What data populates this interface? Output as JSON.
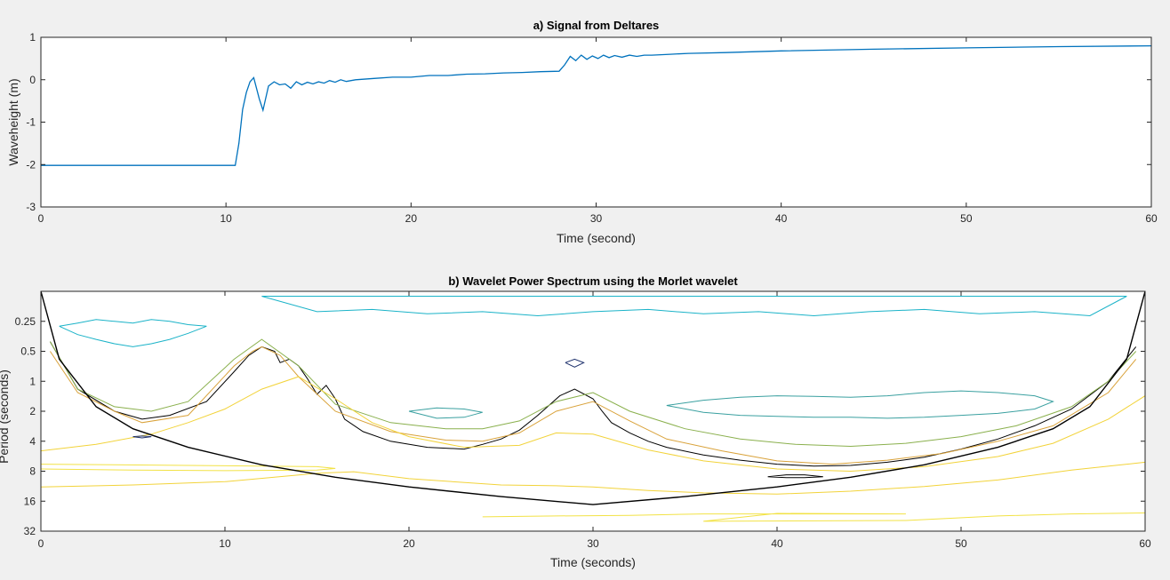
{
  "figure": {
    "background": "#f0f0f0",
    "axes_background": "#ffffff",
    "axes_color": "#262626"
  },
  "chart_data": [
    {
      "type": "line",
      "title": "a) Signal from Deltares",
      "xlabel": "Time (second)",
      "ylabel": "Waveheight (m)",
      "xlim": [
        0,
        60
      ],
      "ylim": [
        -3,
        1
      ],
      "xticks": [
        0,
        10,
        20,
        30,
        40,
        50,
        60
      ],
      "yticks": [
        -3,
        -2,
        -1,
        0,
        1
      ],
      "grid": false,
      "series": [
        {
          "color": "#0072bd",
          "x": [
            0,
            10.5,
            10.7,
            10.9,
            11.1,
            11.3,
            11.5,
            11.8,
            12.0,
            12.3,
            12.6,
            12.9,
            13.2,
            13.5,
            13.8,
            14.1,
            14.4,
            14.7,
            15.0,
            15.3,
            15.6,
            15.9,
            16.2,
            16.5,
            17,
            18,
            19,
            20,
            21,
            22,
            23,
            24,
            25,
            26,
            27,
            28.0,
            28.3,
            28.6,
            28.9,
            29.2,
            29.5,
            29.8,
            30.1,
            30.4,
            30.7,
            31.0,
            31.4,
            31.8,
            32.2,
            32.6,
            33,
            34,
            35,
            37,
            40,
            45,
            50,
            55,
            60
          ],
          "y": [
            -2.02,
            -2.02,
            -1.5,
            -0.7,
            -0.3,
            -0.05,
            0.05,
            -0.45,
            -0.72,
            -0.15,
            -0.05,
            -0.12,
            -0.1,
            -0.2,
            -0.05,
            -0.12,
            -0.06,
            -0.1,
            -0.05,
            -0.08,
            -0.02,
            -0.06,
            0.0,
            -0.04,
            0.0,
            0.03,
            0.06,
            0.06,
            0.1,
            0.1,
            0.13,
            0.14,
            0.16,
            0.17,
            0.19,
            0.2,
            0.35,
            0.55,
            0.45,
            0.58,
            0.48,
            0.56,
            0.5,
            0.58,
            0.52,
            0.57,
            0.53,
            0.58,
            0.55,
            0.58,
            0.58,
            0.6,
            0.62,
            0.64,
            0.68,
            0.72,
            0.75,
            0.78,
            0.8
          ]
        }
      ]
    },
    {
      "type": "contour",
      "title": "b) Wavelet Power Spectrum using the Morlet wavelet",
      "xlabel": "Time (seconds)",
      "ylabel": "Period (seconds)",
      "xlim": [
        0,
        60
      ],
      "ylim": [
        0.125,
        32
      ],
      "yscale": "log2",
      "xticks": [
        0,
        10,
        20,
        30,
        40,
        50,
        60
      ],
      "yticks": [
        "0.25",
        "0.5",
        "1",
        "2",
        "4",
        "8",
        "16",
        "32"
      ],
      "grid": false,
      "cone_of_influence": {
        "color": "#000000",
        "x": [
          0,
          1,
          3,
          5,
          8,
          12,
          16,
          20,
          25,
          30,
          35,
          40,
          44,
          48,
          52,
          55,
          57,
          59,
          60
        ],
        "period": [
          0.125,
          0.6,
          1.8,
          3.0,
          4.6,
          6.9,
          9.2,
          11.5,
          14.4,
          17.3,
          14.4,
          11.5,
          9.2,
          6.9,
          4.6,
          3.0,
          1.8,
          0.6,
          0.125
        ]
      },
      "contours": [
        {
          "level": "significance",
          "color": "#000000",
          "x": [
            0.5,
            2,
            4,
            5.5,
            7,
            9,
            10.5,
            11.3,
            12,
            12.7,
            13,
            13.5,
            14,
            14.5,
            15,
            15.5,
            16,
            16.5,
            17.5,
            19,
            21,
            23,
            24,
            25,
            26,
            27,
            28.2,
            29,
            30,
            30.5,
            31,
            32,
            33,
            34,
            36,
            38,
            40,
            42,
            44,
            46,
            48,
            50,
            52,
            54,
            56,
            58,
            59.5
          ],
          "period": [
            0.4,
            1.2,
            2.0,
            2.4,
            2.2,
            1.6,
            0.8,
            0.55,
            0.45,
            0.5,
            0.65,
            0.6,
            0.7,
            0.95,
            1.35,
            1.1,
            1.5,
            2.4,
            3.2,
            4.0,
            4.6,
            4.8,
            4.3,
            3.8,
            3.1,
            2.2,
            1.4,
            1.2,
            1.5,
            2.0,
            2.6,
            3.3,
            4.0,
            4.6,
            5.5,
            6.2,
            6.8,
            7.1,
            7.0,
            6.5,
            5.8,
            4.8,
            3.8,
            2.8,
            1.9,
            1.0,
            0.45
          ]
        },
        {
          "level": "isolated-small",
          "color": "#000000",
          "x": [
            39.5,
            40.5,
            41.5,
            42.5,
            41.5,
            40.5,
            39.5
          ],
          "period": [
            9.1,
            8.7,
            8.7,
            9.1,
            9.3,
            9.3,
            9.1
          ]
        },
        {
          "level": "mid-orange",
          "color": "#d9a23a",
          "x": [
            0.5,
            2,
            4,
            5.5,
            8,
            10.5,
            11.5,
            12,
            13,
            14,
            16,
            19,
            22,
            24,
            26,
            28,
            30,
            32,
            34,
            37,
            40,
            43,
            46,
            49,
            52,
            55,
            58,
            59.5
          ],
          "period": [
            0.5,
            1.3,
            2.0,
            2.6,
            2.2,
            0.7,
            0.5,
            0.45,
            0.55,
            0.9,
            2.0,
            3.2,
            3.9,
            4.0,
            3.3,
            2.0,
            1.6,
            2.5,
            3.8,
            5.0,
            6.3,
            6.8,
            6.2,
            5.3,
            4.0,
            2.8,
            1.3,
            0.6
          ]
        },
        {
          "level": "mid-olive",
          "color": "#8ab04d",
          "x": [
            0.5,
            2,
            4,
            6,
            8,
            10.5,
            12,
            14,
            16,
            19,
            22,
            24,
            26,
            28,
            30,
            32,
            35,
            38,
            41,
            44,
            47,
            50,
            53,
            56,
            58,
            59.5
          ],
          "period": [
            0.4,
            1.2,
            1.8,
            2.0,
            1.6,
            0.6,
            0.38,
            0.7,
            1.7,
            2.6,
            3.0,
            3.0,
            2.5,
            1.6,
            1.3,
            2.0,
            3.0,
            3.8,
            4.3,
            4.5,
            4.2,
            3.6,
            2.8,
            1.8,
            1.0,
            0.5
          ]
        },
        {
          "level": "low-yellow-upper",
          "color": "#f2d33a",
          "x": [
            0,
            3,
            6,
            8,
            10,
            12,
            14,
            16,
            18,
            20,
            23,
            26,
            28,
            30,
            33,
            36,
            40,
            44,
            48,
            52,
            55,
            58,
            60
          ],
          "period": [
            5.0,
            4.3,
            3.4,
            2.6,
            1.9,
            1.2,
            0.9,
            1.5,
            2.6,
            3.6,
            4.6,
            4.4,
            3.3,
            3.4,
            4.9,
            6.3,
            7.6,
            8.0,
            7.2,
            5.7,
            4.2,
            2.4,
            1.4
          ]
        },
        {
          "level": "low-yellow-lower",
          "color": "#f2d33a",
          "x": [
            0,
            5,
            10,
            15,
            17,
            20,
            25,
            28,
            30,
            33,
            36,
            40,
            44,
            48,
            52,
            56,
            60
          ],
          "period": [
            11.5,
            11.0,
            10.2,
            8.4,
            8.1,
            9.5,
            11.0,
            11.2,
            11.5,
            12.5,
            13.2,
            13.6,
            12.7,
            11.4,
            9.8,
            7.8,
            6.5
          ]
        },
        {
          "level": "lowest-yellow",
          "color": "#f2e245",
          "x": [
            0,
            8,
            15,
            16,
            15,
            10,
            5,
            0
          ],
          "period": [
            6.8,
            7.0,
            7.2,
            7.5,
            7.8,
            7.9,
            7.8,
            7.6
          ]
        },
        {
          "level": "tail-yellow",
          "color": "#f2e245",
          "x": [
            24,
            28,
            32,
            36,
            47,
            40,
            36,
            47,
            52,
            56,
            60
          ],
          "period": [
            23.0,
            22.5,
            22.2,
            21.5,
            21.5,
            21.2,
            25.5,
            25.0,
            22.5,
            21.5,
            21.0
          ]
        },
        {
          "level": "high-teal",
          "color": "#3aa0a0",
          "x": [
            34,
            36,
            38,
            40,
            42,
            44,
            46,
            48,
            50,
            52,
            54,
            55,
            54,
            52,
            50,
            48,
            46,
            44,
            42,
            40,
            38,
            36,
            34
          ],
          "period": [
            1.75,
            1.55,
            1.45,
            1.4,
            1.42,
            1.45,
            1.4,
            1.3,
            1.25,
            1.3,
            1.4,
            1.6,
            1.9,
            2.1,
            2.2,
            2.3,
            2.35,
            2.3,
            2.3,
            2.25,
            2.2,
            2.05,
            1.75
          ]
        },
        {
          "level": "high-teal",
          "color": "#3aa0a0",
          "x": [
            20,
            21.5,
            23,
            24,
            23,
            21.5,
            20
          ],
          "period": [
            2.0,
            1.85,
            1.9,
            2.05,
            2.3,
            2.35,
            2.0
          ]
        },
        {
          "level": "high-cyan",
          "color": "#1bb3c8",
          "x": [
            1,
            2,
            3,
            4,
            5,
            6,
            7,
            8,
            9,
            8,
            7,
            6,
            5,
            4,
            3,
            2,
            1
          ],
          "period": [
            0.28,
            0.26,
            0.24,
            0.25,
            0.26,
            0.24,
            0.25,
            0.27,
            0.28,
            0.33,
            0.38,
            0.42,
            0.45,
            0.42,
            0.38,
            0.34,
            0.28
          ]
        },
        {
          "level": "high-cyan",
          "color": "#1bb3c8",
          "x": [
            12,
            15,
            18,
            21,
            24,
            27,
            30,
            33,
            36,
            39,
            42,
            45,
            48,
            51,
            54,
            57,
            59,
            57,
            54,
            51,
            48,
            45,
            42,
            39,
            36,
            33,
            30,
            27,
            24,
            21,
            18,
            15,
            12
          ],
          "period": [
            0.14,
            0.14,
            0.14,
            0.14,
            0.14,
            0.14,
            0.14,
            0.14,
            0.14,
            0.14,
            0.14,
            0.14,
            0.14,
            0.14,
            0.14,
            0.14,
            0.14,
            0.22,
            0.2,
            0.21,
            0.19,
            0.2,
            0.22,
            0.2,
            0.21,
            0.19,
            0.2,
            0.22,
            0.2,
            0.21,
            0.19,
            0.2,
            0.14
          ]
        },
        {
          "level": "highest-navy",
          "color": "#1c2f6b",
          "x": [
            5.0,
            5.5,
            6.0,
            5.5,
            5.0
          ],
          "period": [
            3.6,
            3.55,
            3.6,
            3.7,
            3.6
          ]
        },
        {
          "level": "highest-navy",
          "color": "#1c2f6b",
          "x": [
            28.5,
            29.0,
            29.5,
            29.0,
            28.5
          ],
          "period": [
            0.65,
            0.6,
            0.65,
            0.72,
            0.65
          ]
        }
      ]
    }
  ]
}
